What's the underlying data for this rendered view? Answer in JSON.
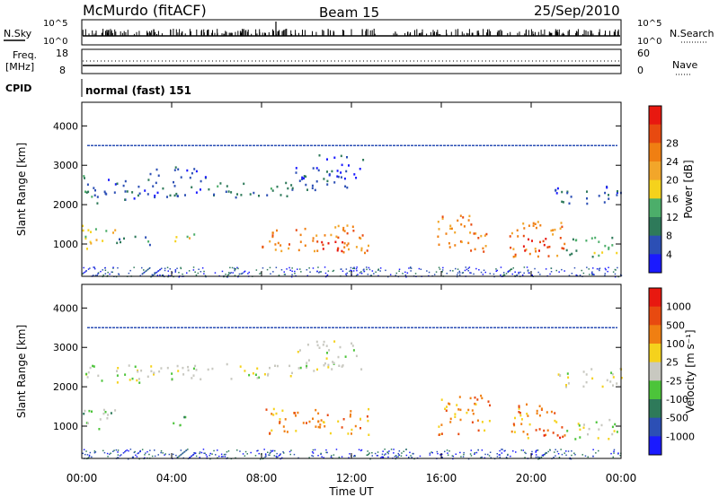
{
  "header": {
    "title": "McMurdo (fitACF)",
    "beam": "Beam 15",
    "date": "25/Sep/2010",
    "mode": "normal (fast) 151"
  },
  "small_panels": {
    "nsky_label": "N.Sky",
    "nsearch_label": "N.Search",
    "freq_label_1": "Freq.",
    "freq_label_2": "[MHz]",
    "nave_label": "Nave",
    "cpid_label": "CPID",
    "count_ticks": [
      "10^5",
      "10^0"
    ],
    "freq_ticks": [
      "18",
      "8"
    ],
    "nave_ticks": [
      "60",
      "0"
    ]
  },
  "colors": {
    "power_scale": [
      "#1a1aff",
      "#2c4fb5",
      "#2e7a5a",
      "#4cae6a",
      "#f5d21c",
      "#f2a62a",
      "#f07f12",
      "#e84a10",
      "#e81810"
    ],
    "velocity_scale": [
      "#1a1aff",
      "#2c4fb5",
      "#2e7a5a",
      "#4cc43a",
      "#c8c8c0",
      "#f5d21c",
      "#f07f12",
      "#e84a10",
      "#e81810"
    ]
  },
  "chart_data": [
    {
      "type": "heatmap",
      "title": "",
      "xlabel": "Time UT",
      "ylabel": "Slant Range [km]",
      "xlim": [
        "00:00",
        "24:00"
      ],
      "ylim": [
        180,
        4600
      ],
      "x_ticks": [
        "00:00",
        "04:00",
        "08:00",
        "12:00",
        "16:00",
        "20:00",
        "00:00"
      ],
      "y_ticks": [
        1000,
        2000,
        3000,
        4000
      ],
      "colorbar_label": "Power [dB]",
      "colorbar_ticks": [
        "4",
        "8",
        "12",
        "16",
        "20",
        "24",
        "28"
      ],
      "regions": [
        {
          "t0": 0.0,
          "t1": 1.0,
          "r0": 2000,
          "r1": 2800,
          "level": 2
        },
        {
          "t0": 1.0,
          "t1": 3.0,
          "r0": 2100,
          "r1": 2700,
          "level": 1
        },
        {
          "t0": 3.0,
          "t1": 5.5,
          "r0": 2200,
          "r1": 3000,
          "level": 1
        },
        {
          "t0": 5.5,
          "t1": 9.5,
          "r0": 2200,
          "r1": 2600,
          "level": 2
        },
        {
          "t0": 9.5,
          "t1": 12.5,
          "r0": 2400,
          "r1": 3300,
          "level": 1
        },
        {
          "t0": 0.0,
          "t1": 1.5,
          "r0": 900,
          "r1": 1500,
          "level": 4
        },
        {
          "t0": 1.5,
          "t1": 3.0,
          "r0": 1000,
          "r1": 1300,
          "level": 2
        },
        {
          "t0": 4.0,
          "t1": 5.0,
          "r0": 1000,
          "r1": 1300,
          "level": 4
        },
        {
          "t0": 8.0,
          "t1": 12.8,
          "r0": 800,
          "r1": 1500,
          "level": 6
        },
        {
          "t0": 10.5,
          "t1": 12.0,
          "r0": 800,
          "r1": 1150,
          "level": 8
        },
        {
          "t0": 15.8,
          "t1": 18.0,
          "r0": 800,
          "r1": 1800,
          "level": 6
        },
        {
          "t0": 19.0,
          "t1": 21.5,
          "r0": 700,
          "r1": 1600,
          "level": 6
        },
        {
          "t0": 19.5,
          "t1": 20.8,
          "r0": 750,
          "r1": 1200,
          "level": 8
        },
        {
          "t0": 21.5,
          "t1": 24.0,
          "r0": 700,
          "r1": 1200,
          "level": 3
        },
        {
          "t0": 21.0,
          "t1": 24.0,
          "r0": 2000,
          "r1": 2500,
          "level": 1
        }
      ],
      "horizontal_line_range_km": 3500
    },
    {
      "type": "heatmap",
      "title": "",
      "xlabel": "Time UT",
      "ylabel": "Slant Range [km]",
      "xlim": [
        "00:00",
        "24:00"
      ],
      "ylim": [
        180,
        4600
      ],
      "x_ticks": [
        "00:00",
        "04:00",
        "08:00",
        "12:00",
        "16:00",
        "20:00",
        "00:00"
      ],
      "y_ticks": [
        1000,
        2000,
        3000,
        4000
      ],
      "colorbar_label": "Velocity [m s⁻¹]",
      "colorbar_ticks": [
        "1000",
        "500",
        "100",
        "25",
        "-25",
        "-100",
        "-500",
        "-1000"
      ],
      "regions": [
        {
          "t0": 0.0,
          "t1": 3.0,
          "r0": 2100,
          "r1": 2600,
          "level": 4
        },
        {
          "t0": 3.0,
          "t1": 9.5,
          "r0": 2200,
          "r1": 2600,
          "level": 4
        },
        {
          "t0": 9.5,
          "t1": 12.5,
          "r0": 2400,
          "r1": 3200,
          "level": 4
        },
        {
          "t0": 0.0,
          "t1": 1.5,
          "r0": 900,
          "r1": 1500,
          "level": 3
        },
        {
          "t0": 4.0,
          "t1": 5.0,
          "r0": 1000,
          "r1": 1300,
          "level": 3
        },
        {
          "t0": 8.0,
          "t1": 12.8,
          "r0": 800,
          "r1": 1500,
          "level": 6
        },
        {
          "t0": 15.8,
          "t1": 18.2,
          "r0": 800,
          "r1": 1800,
          "level": 6
        },
        {
          "t0": 19.0,
          "t1": 21.5,
          "r0": 700,
          "r1": 1600,
          "level": 6
        },
        {
          "t0": 20.5,
          "t1": 21.5,
          "r0": 700,
          "r1": 1000,
          "level": 7
        },
        {
          "t0": 21.5,
          "t1": 24.0,
          "r0": 700,
          "r1": 1200,
          "level": 4
        },
        {
          "t0": 21.0,
          "t1": 24.0,
          "r0": 2000,
          "r1": 2500,
          "level": 4
        }
      ],
      "horizontal_line_range_km": 3500
    }
  ]
}
